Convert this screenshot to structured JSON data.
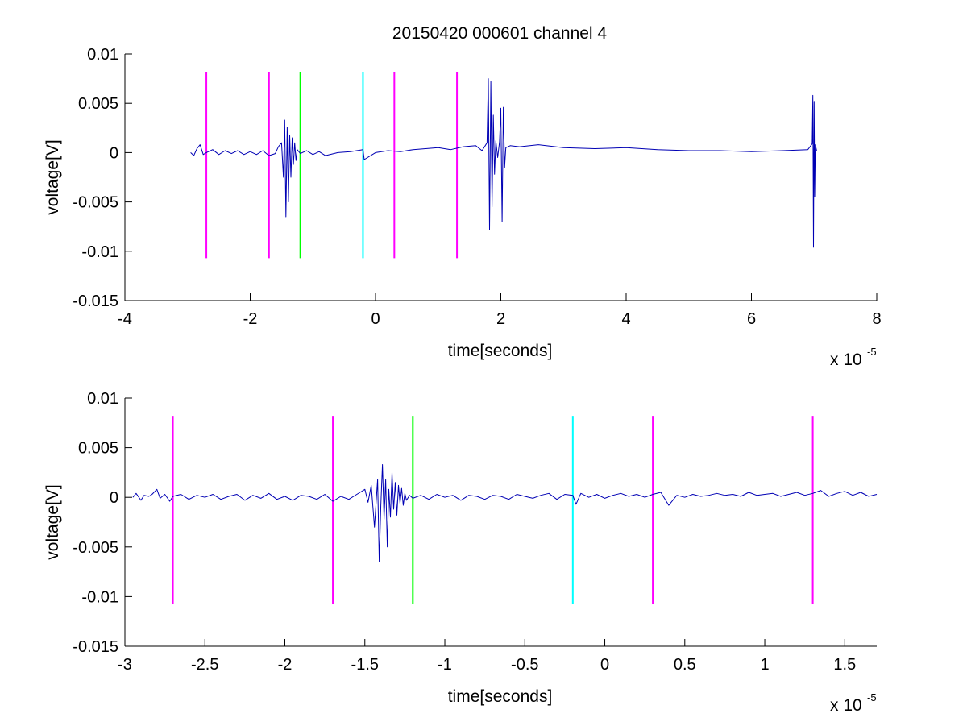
{
  "title": "20150420 000601 channel 4",
  "colors": {
    "trace": "#0000b4",
    "magenta": "#ff00ff",
    "green": "#00ff00",
    "cyan": "#00ffff",
    "axes": "#000000",
    "background": "#ffffff"
  },
  "chart_data": [
    {
      "type": "line",
      "title": "20150420 000601 channel 4",
      "xlabel": "time[seconds]",
      "ylabel": "voltage[V]",
      "x_exponent_label": "x 10",
      "x_exponent": "-5",
      "xlim": [
        -4,
        8
      ],
      "ylim": [
        -0.015,
        0.01
      ],
      "x_ticks": [
        -4,
        -2,
        0,
        2,
        4,
        6,
        8
      ],
      "x_tick_labels": [
        "-4",
        "-2",
        "0",
        "2",
        "4",
        "6",
        "8"
      ],
      "y_ticks": [
        0.01,
        0.005,
        0,
        -0.005,
        -0.01,
        -0.015
      ],
      "y_tick_labels": [
        "0.01",
        "0.005",
        "0",
        "-0.005",
        "-0.01",
        "-0.015"
      ],
      "grid": false,
      "markers": [
        {
          "x": -2.7,
          "y_range": [
            -0.0107,
            0.0082
          ],
          "color": "magenta"
        },
        {
          "x": -1.7,
          "y_range": [
            -0.0107,
            0.0082
          ],
          "color": "magenta"
        },
        {
          "x": -1.2,
          "y_range": [
            -0.0107,
            0.0082
          ],
          "color": "green"
        },
        {
          "x": -0.2,
          "y_range": [
            -0.0107,
            0.0082
          ],
          "color": "cyan"
        },
        {
          "x": 0.3,
          "y_range": [
            -0.0107,
            0.0082
          ],
          "color": "magenta"
        },
        {
          "x": 1.3,
          "y_range": [
            -0.0107,
            0.0082
          ],
          "color": "magenta"
        }
      ],
      "series": [
        {
          "x": [
            -2.95,
            -2.9,
            -2.85,
            -2.8,
            -2.75,
            -2.7,
            -2.6,
            -2.5,
            -2.4,
            -2.3,
            -2.2,
            -2.1,
            -2.0,
            -1.9,
            -1.8,
            -1.7,
            -1.6,
            -1.55,
            -1.5,
            -1.47,
            -1.45,
            -1.43,
            -1.41,
            -1.39,
            -1.37,
            -1.35,
            -1.33,
            -1.31,
            -1.29,
            -1.27,
            -1.25,
            -1.2,
            -1.1,
            -1.0,
            -0.9,
            -0.8,
            -0.6,
            -0.4,
            -0.2,
            -0.18,
            0.0,
            0.2,
            0.4,
            0.6,
            0.8,
            1.0,
            1.2,
            1.4,
            1.6,
            1.7,
            1.78,
            1.8,
            1.82,
            1.84,
            1.86,
            1.88,
            1.9,
            1.92,
            1.95,
            1.98,
            2.0,
            2.02,
            2.04,
            2.06,
            2.08,
            2.15,
            2.3,
            2.6,
            3.0,
            3.5,
            4.0,
            4.5,
            5.0,
            5.5,
            6.0,
            6.5,
            6.9,
            6.97,
            6.98,
            6.99,
            7.0,
            7.01,
            7.02,
            7.04
          ],
          "y": [
            0.0,
            -0.0003,
            0.0004,
            0.0008,
            -0.0002,
            0.0,
            0.0003,
            -0.0002,
            0.0002,
            -0.0001,
            0.0002,
            -0.0002,
            0.0001,
            -0.0002,
            0.0002,
            -0.0003,
            -0.0001,
            0.0006,
            0.001,
            -0.0025,
            0.0033,
            -0.0065,
            0.0026,
            -0.005,
            0.0018,
            -0.0025,
            0.0015,
            -0.0012,
            0.001,
            -0.0008,
            0.0003,
            -0.0001,
            0.0002,
            -0.0002,
            0.0001,
            -0.0003,
            0.0,
            0.0001,
            0.0003,
            -0.0007,
            0.0,
            0.0002,
            0.0001,
            0.0003,
            0.0004,
            0.0005,
            0.0003,
            0.0006,
            0.0007,
            0.0002,
            0.001,
            0.0075,
            -0.0078,
            0.0072,
            -0.0055,
            0.0038,
            -0.0022,
            0.0012,
            -0.0005,
            0.0011,
            0.0045,
            -0.007,
            0.0046,
            -0.0015,
            0.0005,
            0.0007,
            0.0006,
            0.0008,
            0.0005,
            0.0004,
            0.0005,
            0.0003,
            0.0002,
            0.0002,
            0.0001,
            0.0002,
            0.0003,
            0.0009,
            0.0058,
            -0.0096,
            0.0052,
            -0.0045,
            0.0008,
            0.0002
          ]
        }
      ]
    },
    {
      "type": "line",
      "xlabel": "time[seconds]",
      "ylabel": "voltage[V]",
      "x_exponent_label": "x 10",
      "x_exponent": "-5",
      "xlim": [
        -3.0,
        1.7
      ],
      "ylim": [
        -0.015,
        0.01
      ],
      "x_ticks": [
        -3,
        -2.5,
        -2,
        -1.5,
        -1,
        -0.5,
        0,
        0.5,
        1,
        1.5
      ],
      "x_tick_labels": [
        "-3",
        "-2.5",
        "-2",
        "-1.5",
        "-1",
        "-0.5",
        "0",
        "0.5",
        "1",
        "1.5"
      ],
      "y_ticks": [
        0.01,
        0.005,
        0,
        -0.005,
        -0.01,
        -0.015
      ],
      "y_tick_labels": [
        "0.01",
        "0.005",
        "0",
        "-0.005",
        "-0.01",
        "-0.015"
      ],
      "grid": false,
      "markers": [
        {
          "x": -2.7,
          "y_range": [
            -0.0107,
            0.0082
          ],
          "color": "magenta"
        },
        {
          "x": -1.7,
          "y_range": [
            -0.0107,
            0.0082
          ],
          "color": "magenta"
        },
        {
          "x": -1.2,
          "y_range": [
            -0.0107,
            0.0082
          ],
          "color": "green"
        },
        {
          "x": -0.2,
          "y_range": [
            -0.0107,
            0.0082
          ],
          "color": "cyan"
        },
        {
          "x": 0.3,
          "y_range": [
            -0.0107,
            0.0082
          ],
          "color": "magenta"
        },
        {
          "x": 1.3,
          "y_range": [
            -0.0107,
            0.0082
          ],
          "color": "magenta"
        }
      ],
      "series": [
        {
          "x": [
            -2.95,
            -2.93,
            -2.9,
            -2.88,
            -2.85,
            -2.83,
            -2.8,
            -2.78,
            -2.75,
            -2.72,
            -2.7,
            -2.65,
            -2.6,
            -2.55,
            -2.5,
            -2.45,
            -2.4,
            -2.35,
            -2.3,
            -2.25,
            -2.2,
            -2.15,
            -2.1,
            -2.05,
            -2.0,
            -1.95,
            -1.9,
            -1.85,
            -1.8,
            -1.75,
            -1.7,
            -1.65,
            -1.6,
            -1.55,
            -1.5,
            -1.48,
            -1.46,
            -1.44,
            -1.42,
            -1.41,
            -1.4,
            -1.39,
            -1.38,
            -1.37,
            -1.36,
            -1.35,
            -1.34,
            -1.33,
            -1.32,
            -1.31,
            -1.3,
            -1.29,
            -1.28,
            -1.27,
            -1.26,
            -1.25,
            -1.24,
            -1.22,
            -1.2,
            -1.15,
            -1.1,
            -1.05,
            -1.0,
            -0.95,
            -0.9,
            -0.85,
            -0.8,
            -0.75,
            -0.7,
            -0.65,
            -0.6,
            -0.55,
            -0.5,
            -0.45,
            -0.4,
            -0.35,
            -0.3,
            -0.25,
            -0.2,
            -0.18,
            -0.15,
            -0.1,
            -0.05,
            0.0,
            0.05,
            0.1,
            0.15,
            0.2,
            0.25,
            0.3,
            0.35,
            0.4,
            0.45,
            0.5,
            0.55,
            0.6,
            0.65,
            0.7,
            0.75,
            0.8,
            0.85,
            0.9,
            0.95,
            1.0,
            1.05,
            1.1,
            1.15,
            1.2,
            1.25,
            1.3,
            1.35,
            1.4,
            1.45,
            1.5,
            1.55,
            1.6,
            1.65,
            1.7
          ],
          "y": [
            0.0,
            0.0004,
            -0.0003,
            0.0002,
            0.0001,
            0.0003,
            0.0008,
            -0.0001,
            0.0003,
            -0.0004,
            0.0001,
            0.0003,
            -0.0002,
            0.0002,
            0.0,
            0.0003,
            -0.0002,
            0.0001,
            0.0003,
            -0.0003,
            0.0002,
            -0.0001,
            0.0004,
            -0.0002,
            0.0001,
            -0.0003,
            0.0002,
            0.0001,
            -0.0002,
            0.0003,
            -0.0004,
            0.0001,
            -0.0002,
            0.0003,
            0.0008,
            -0.0005,
            0.0012,
            -0.003,
            0.0018,
            -0.0065,
            -0.0008,
            0.0033,
            -0.0022,
            0.0018,
            -0.005,
            0.0008,
            -0.002,
            0.0025,
            -0.0012,
            0.0015,
            -0.0018,
            0.0012,
            -0.0006,
            0.0009,
            -0.0008,
            0.0004,
            -0.0003,
            0.0002,
            -0.0001,
            0.0002,
            -0.0002,
            0.0003,
            0.0,
            0.0002,
            -0.0003,
            0.0002,
            0.0001,
            -0.0002,
            0.0002,
            0.0001,
            -0.0002,
            0.0003,
            0.0001,
            -0.0001,
            0.0002,
            0.0004,
            -0.0002,
            0.0003,
            0.0002,
            -0.0007,
            0.0004,
            0.0,
            0.0003,
            -0.0001,
            0.0002,
            0.0004,
            0.0001,
            0.0003,
            0.0,
            0.0003,
            0.0005,
            -0.0008,
            0.0002,
            0.0,
            0.0003,
            0.0001,
            0.0002,
            0.0004,
            0.0002,
            0.0003,
            0.0001,
            0.0005,
            0.0002,
            0.0003,
            0.0004,
            0.0001,
            0.0003,
            0.0005,
            0.0002,
            0.0004,
            0.0007,
            0.0001,
            0.0004,
            0.0006,
            0.0002,
            0.0005,
            0.0001,
            0.0003
          ]
        }
      ]
    }
  ]
}
